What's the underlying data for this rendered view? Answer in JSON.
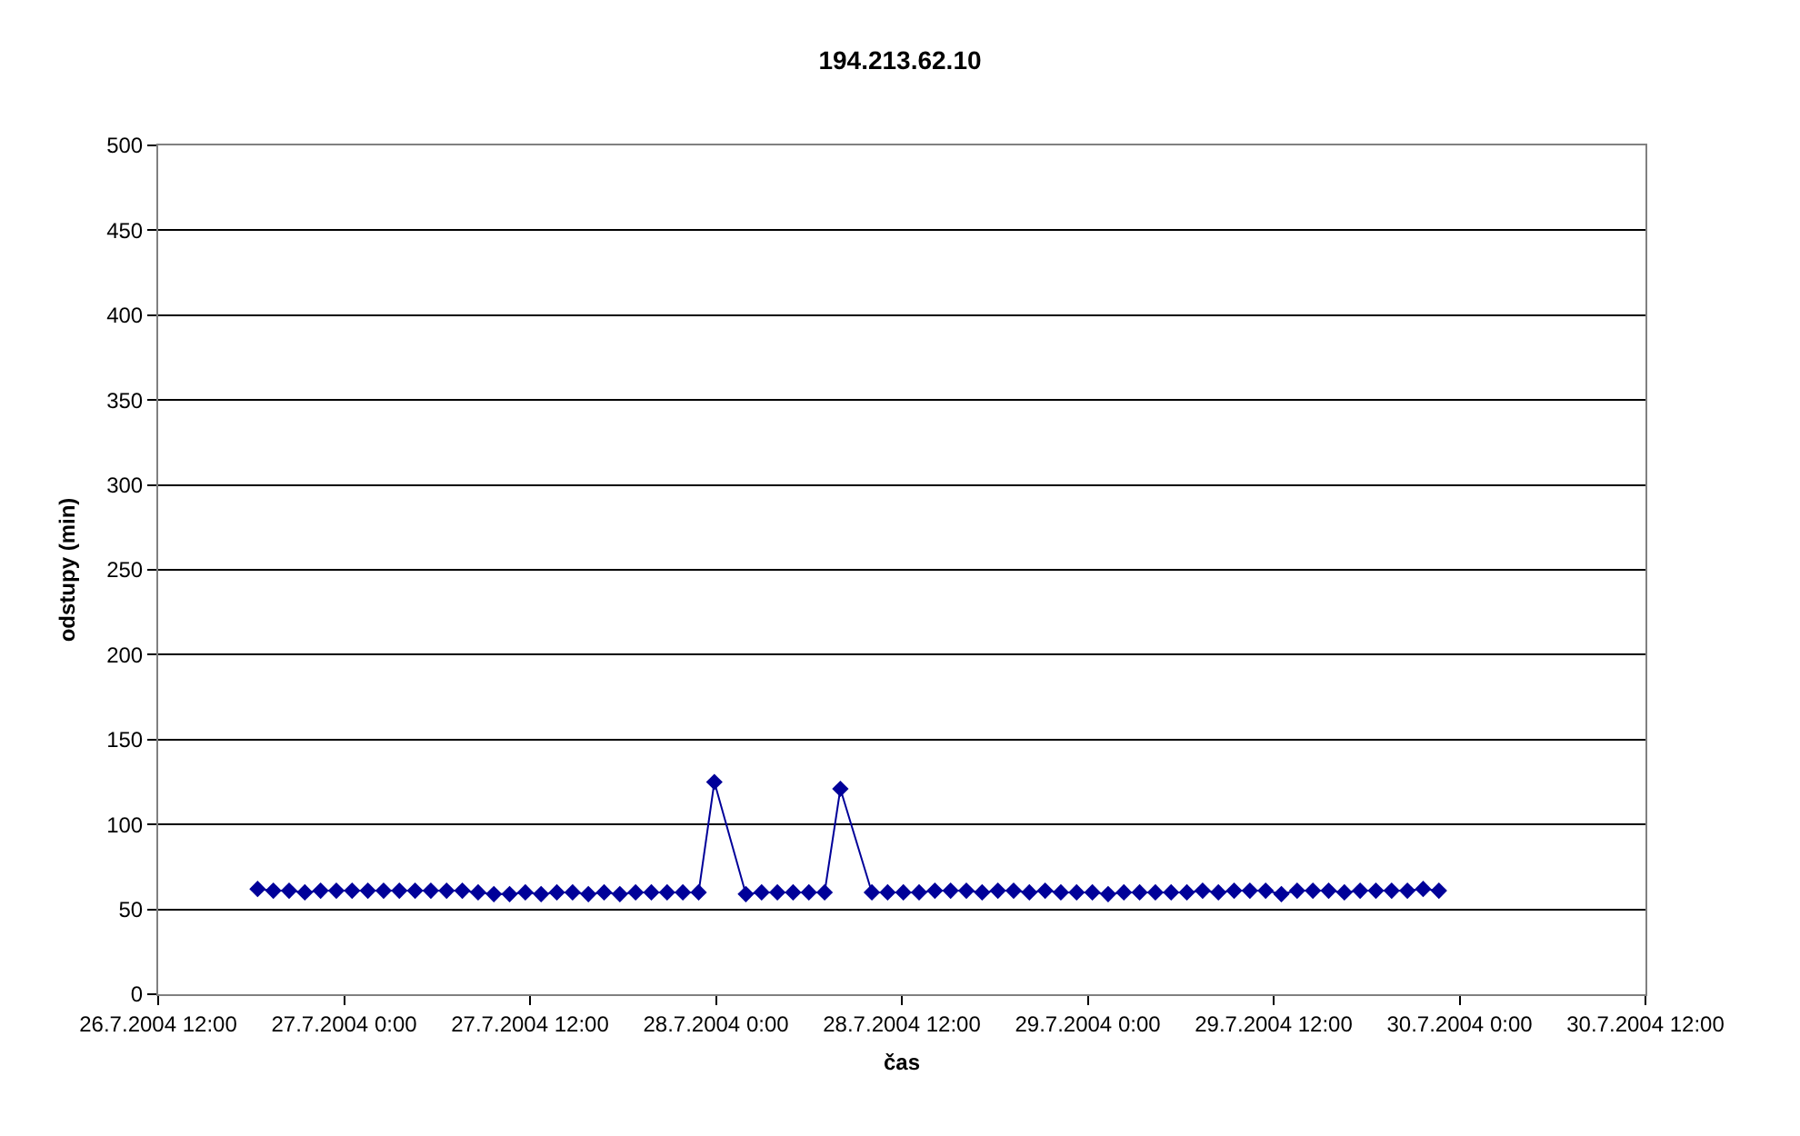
{
  "chart_data": {
    "type": "line",
    "title": "194.213.62.10",
    "xlabel": "čas",
    "ylabel": "odstupy (min)",
    "x": [
      "2004-07-26T18:25",
      "2004-07-26T19:26",
      "2004-07-26T20:27",
      "2004-07-26T21:28",
      "2004-07-26T22:29",
      "2004-07-26T23:30",
      "2004-07-27T00:31",
      "2004-07-27T01:32",
      "2004-07-27T02:33",
      "2004-07-27T03:34",
      "2004-07-27T04:35",
      "2004-07-27T05:36",
      "2004-07-27T06:37",
      "2004-07-27T07:38",
      "2004-07-27T08:39",
      "2004-07-27T09:40",
      "2004-07-27T10:41",
      "2004-07-27T11:42",
      "2004-07-27T12:43",
      "2004-07-27T13:44",
      "2004-07-27T14:45",
      "2004-07-27T15:46",
      "2004-07-27T16:47",
      "2004-07-27T17:48",
      "2004-07-27T18:49",
      "2004-07-27T19:50",
      "2004-07-27T20:51",
      "2004-07-27T21:52",
      "2004-07-27T22:53",
      "2004-07-27T23:54",
      "2004-07-28T01:56",
      "2004-07-28T02:57",
      "2004-07-28T03:58",
      "2004-07-28T04:59",
      "2004-07-28T06:00",
      "2004-07-28T07:01",
      "2004-07-28T08:02",
      "2004-07-28T10:04",
      "2004-07-28T11:05",
      "2004-07-28T12:06",
      "2004-07-28T13:07",
      "2004-07-28T14:08",
      "2004-07-28T15:09",
      "2004-07-28T16:10",
      "2004-07-28T17:11",
      "2004-07-28T18:12",
      "2004-07-28T19:13",
      "2004-07-28T20:14",
      "2004-07-28T21:15",
      "2004-07-28T22:16",
      "2004-07-28T23:17",
      "2004-07-29T00:18",
      "2004-07-29T01:19",
      "2004-07-29T02:20",
      "2004-07-29T03:21",
      "2004-07-29T04:22",
      "2004-07-29T05:23",
      "2004-07-29T06:24",
      "2004-07-29T07:25",
      "2004-07-29T08:26",
      "2004-07-29T09:27",
      "2004-07-29T10:28",
      "2004-07-29T11:29",
      "2004-07-29T12:30",
      "2004-07-29T13:31",
      "2004-07-29T14:32",
      "2004-07-29T15:33",
      "2004-07-29T16:34",
      "2004-07-29T17:35",
      "2004-07-29T18:36",
      "2004-07-29T19:37",
      "2004-07-29T20:38",
      "2004-07-29T21:39",
      "2004-07-29T22:40"
    ],
    "series": [
      {
        "color": "#000099",
        "values": [
          62,
          61,
          61,
          60,
          61,
          61,
          61,
          61,
          61,
          61,
          61,
          61,
          61,
          61,
          60,
          59,
          59,
          60,
          59,
          60,
          60,
          59,
          60,
          59,
          60,
          60,
          60,
          60,
          60,
          125,
          59,
          60,
          60,
          60,
          60,
          60,
          121,
          60,
          60,
          60,
          60,
          61,
          61,
          61,
          60,
          61,
          61,
          60,
          61,
          60,
          60,
          60,
          59,
          60,
          60,
          60,
          60,
          60,
          61,
          60,
          61,
          61,
          61,
          59,
          61,
          61,
          61,
          60,
          61,
          61,
          61,
          61,
          62,
          61
        ]
      }
    ],
    "xlim": [
      "2004-07-26T12:00",
      "2004-07-30T12:00"
    ],
    "xticks": [
      {
        "value": "2004-07-26T12:00",
        "label": "26.7.2004 12:00"
      },
      {
        "value": "2004-07-27T00:00",
        "label": "27.7.2004 0:00"
      },
      {
        "value": "2004-07-27T12:00",
        "label": "27.7.2004 12:00"
      },
      {
        "value": "2004-07-28T00:00",
        "label": "28.7.2004 0:00"
      },
      {
        "value": "2004-07-28T12:00",
        "label": "28.7.2004 12:00"
      },
      {
        "value": "2004-07-29T00:00",
        "label": "29.7.2004 0:00"
      },
      {
        "value": "2004-07-29T12:00",
        "label": "29.7.2004 12:00"
      },
      {
        "value": "2004-07-30T00:00",
        "label": "30.7.2004 0:00"
      },
      {
        "value": "2004-07-30T12:00",
        "label": "30.7.2004 12:00"
      }
    ],
    "ylim": [
      0,
      500
    ],
    "yticks": [
      0,
      50,
      100,
      150,
      200,
      250,
      300,
      350,
      400,
      450,
      500
    ],
    "grid": "y",
    "marker": "diamond",
    "line_style": "solid"
  }
}
